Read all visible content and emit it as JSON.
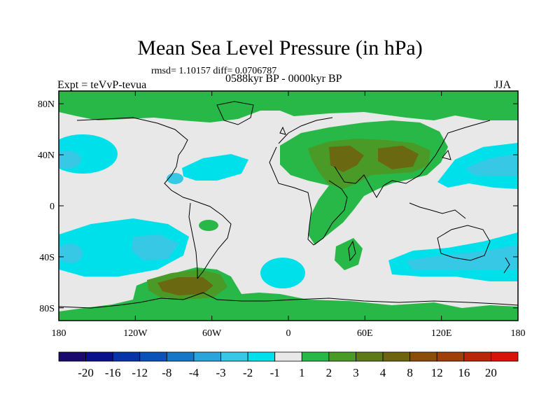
{
  "header": {
    "title": "Mean Sea Level Pressure (in hPa)",
    "stats": "rmsd= 1.10157 diff= 0.0706787",
    "expt": "Expt = teVvP-tevua",
    "period": "0588kyr BP - 0000kyr BP",
    "season": "JJA"
  },
  "axes": {
    "lon_ticks": [
      "180",
      "120W",
      "60W",
      "0",
      "60E",
      "120E",
      "180"
    ],
    "lat_ticks": [
      "80N",
      "40N",
      "0",
      "40S",
      "80S"
    ],
    "lon_values": [
      -180,
      -120,
      -60,
      0,
      60,
      120,
      180
    ],
    "lat_values": [
      80,
      40,
      0,
      -40,
      -80
    ],
    "lon_range": [
      -180,
      180
    ],
    "lat_range": [
      -90,
      90
    ]
  },
  "colorbar": {
    "colors": [
      "#1a0a6e",
      "#0a0f8c",
      "#0733a8",
      "#0a52b8",
      "#1477c8",
      "#2aa5dc",
      "#37c8e6",
      "#00e0eb",
      "#e8e8e8",
      "#28b848",
      "#4a9a28",
      "#5e7a18",
      "#6e6410",
      "#8a4e0a",
      "#a04008",
      "#b82808",
      "#d8140a"
    ],
    "labels": [
      "-20",
      "-16",
      "-12",
      "-8",
      "-4",
      "-3",
      "-2",
      "-1",
      "1",
      "2",
      "3",
      "4",
      "8",
      "12",
      "16",
      "20"
    ]
  },
  "legend_colors": {
    "neutral": "#e8e8e8",
    "pos_1_2": "#28b848",
    "pos_2_3": "#4a9a28",
    "pos_3_4": "#5e7a18",
    "neg_1_2": "#00e0eb",
    "neg_2_3": "#37c8e6",
    "neg_3_4": "#2aa5dc"
  }
}
